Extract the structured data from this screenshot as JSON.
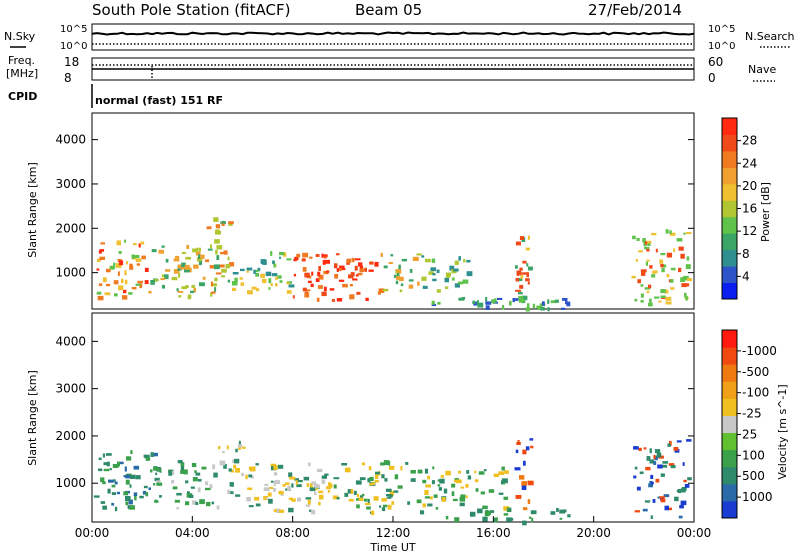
{
  "header": {
    "station": "South Pole Station (fitACF)",
    "beam": "Beam 05",
    "date": "27/Feb/2014"
  },
  "top_panels": {
    "nsky_label": "N.Sky",
    "nsearch_label": "N.Search",
    "exp_high": "10^5",
    "exp_low": "10^0",
    "freq_label_1": "Freq.",
    "freq_label_2": "[MHz]",
    "freq_ticks": [
      "18",
      "8"
    ],
    "nave_ticks": [
      "60",
      "0"
    ],
    "nave_label": "Nave",
    "cpid_label": "CPID",
    "mode_text": "normal (fast) 151 RF"
  },
  "chart_data": [
    {
      "type": "heatmap",
      "name": "power",
      "ylabel": "Slant Range [km]",
      "yticks": [
        1000,
        2000,
        3000,
        4000
      ],
      "ylim": [
        180,
        4600
      ],
      "xlim_hours": [
        0,
        24
      ],
      "colorbar": {
        "label": "Power [dB]",
        "ticks": [
          "4",
          "8",
          "12",
          "16",
          "20",
          "24",
          "28"
        ],
        "colors": [
          "#0a1ef0",
          "#2c54c8",
          "#2f8f8f",
          "#3aa566",
          "#5fc24a",
          "#b0c632",
          "#f0c030",
          "#f0a030",
          "#f07a20",
          "#f04a18",
          "#ff2a10"
        ]
      },
      "regions": [
        {
          "x": [
            0.0,
            2.2
          ],
          "y": [
            450,
            1800
          ],
          "levels": [
            4,
            6,
            8,
            10
          ]
        },
        {
          "x": [
            2.2,
            4.5
          ],
          "y": [
            450,
            1700
          ],
          "levels": [
            3,
            5,
            7
          ]
        },
        {
          "x": [
            4.5,
            5.5
          ],
          "y": [
            500,
            2300
          ],
          "levels": [
            3,
            5,
            8
          ]
        },
        {
          "x": [
            5.5,
            8.0
          ],
          "y": [
            600,
            1500
          ],
          "levels": [
            2,
            4,
            6
          ]
        },
        {
          "x": [
            8.0,
            11.5
          ],
          "y": [
            400,
            1450
          ],
          "levels": [
            8,
            9,
            10
          ]
        },
        {
          "x": [
            11.5,
            13.0
          ],
          "y": [
            600,
            1500
          ],
          "levels": [
            3,
            5,
            7
          ]
        },
        {
          "x": [
            13.0,
            15.0
          ],
          "y": [
            600,
            1400
          ],
          "levels": [
            2,
            4,
            5
          ]
        },
        {
          "x": [
            13.0,
            19.0
          ],
          "y": [
            200,
            500
          ],
          "levels": [
            1,
            3,
            4
          ]
        },
        {
          "x": [
            16.8,
            17.4
          ],
          "y": [
            500,
            2000
          ],
          "levels": [
            3,
            6,
            9
          ]
        },
        {
          "x": [
            21.5,
            23.8
          ],
          "y": [
            300,
            2000
          ],
          "levels": [
            4,
            6,
            9
          ]
        }
      ]
    },
    {
      "type": "heatmap",
      "name": "velocity",
      "ylabel": "Slant Range [km]",
      "yticks": [
        1000,
        2000,
        3000,
        4000
      ],
      "ylim": [
        180,
        4600
      ],
      "xlim_hours": [
        0,
        24
      ],
      "xlabel": "Time UT",
      "xticks": [
        "00:00",
        "04:00",
        "08:00",
        "12:00",
        "16:00",
        "20:00",
        "00:00"
      ],
      "colorbar": {
        "label": "Velocity [m s^-1]",
        "ticks": [
          "1000",
          "500",
          "100",
          "25",
          "-25",
          "-100",
          "-500",
          "-1000"
        ],
        "colors": [
          "#1a3cd0",
          "#2a6aa8",
          "#2e8a6a",
          "#3aa04a",
          "#60c030",
          "#c8c8c8",
          "#f0c020",
          "#f0a018",
          "#f07a10",
          "#f04a10",
          "#ff1a10"
        ]
      },
      "regions": [
        {
          "x": [
            0.0,
            2.5
          ],
          "y": [
            500,
            1700
          ],
          "levels": [
            2,
            3,
            1
          ]
        },
        {
          "x": [
            2.5,
            5.0
          ],
          "y": [
            450,
            1500
          ],
          "levels": [
            2,
            3,
            5
          ]
        },
        {
          "x": [
            5.0,
            6.0
          ],
          "y": [
            600,
            2000
          ],
          "levels": [
            5,
            6,
            2
          ]
        },
        {
          "x": [
            6.0,
            9.5
          ],
          "y": [
            400,
            1500
          ],
          "levels": [
            6,
            5,
            2
          ]
        },
        {
          "x": [
            9.5,
            12.5
          ],
          "y": [
            400,
            1500
          ],
          "levels": [
            6,
            2,
            3
          ]
        },
        {
          "x": [
            12.5,
            16.5
          ],
          "y": [
            500,
            1400
          ],
          "levels": [
            2,
            3,
            6
          ]
        },
        {
          "x": [
            13.0,
            19.0
          ],
          "y": [
            200,
            500
          ],
          "levels": [
            2,
            3
          ]
        },
        {
          "x": [
            16.8,
            17.5
          ],
          "y": [
            400,
            2000
          ],
          "levels": [
            8,
            9,
            0
          ]
        },
        {
          "x": [
            21.5,
            23.8
          ],
          "y": [
            300,
            2000
          ],
          "levels": [
            0,
            1,
            2,
            9
          ]
        }
      ]
    }
  ]
}
